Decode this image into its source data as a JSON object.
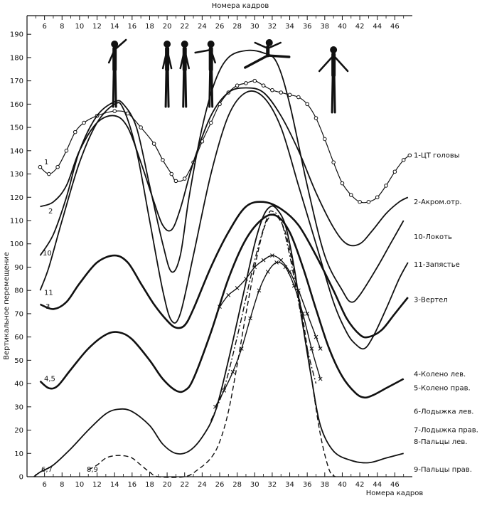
{
  "chart_data": {
    "type": "line",
    "title": "",
    "xlabel_top": "Номера кадров",
    "xlabel_bottom": "Номера кадров",
    "ylabel": "Вертикальное перемещение",
    "xlim": [
      4,
      48
    ],
    "ylim": [
      0,
      198
    ],
    "x_ticks_top": [
      "6",
      "8",
      "10",
      "12",
      "14",
      "16",
      "18",
      "20",
      "22",
      "24",
      "26",
      "28",
      "30",
      "32",
      "34",
      "36",
      "38",
      "40",
      "42",
      "44",
      "46"
    ],
    "x_ticks_bottom": [
      "6",
      "8",
      "10",
      "12",
      "14",
      "16",
      "18",
      "20",
      "22",
      "24",
      "26",
      "28",
      "30",
      "32",
      "34",
      "36",
      "38",
      "40",
      "42",
      "44",
      "46"
    ],
    "y_ticks": [
      "0",
      "10",
      "20",
      "30",
      "40",
      "50",
      "60",
      "70",
      "80",
      "90",
      "100",
      "110",
      "120",
      "130",
      "140",
      "150",
      "160",
      "170",
      "180",
      "190"
    ],
    "grid": false,
    "series": [
      {
        "name": "1-ЦТ головы",
        "style": "circles",
        "points": [
          [
            5.5,
            133
          ],
          [
            6.5,
            130
          ],
          [
            7.5,
            133
          ],
          [
            8.5,
            140
          ],
          [
            9.5,
            148
          ],
          [
            10.5,
            152
          ],
          [
            12,
            155
          ],
          [
            14,
            157
          ],
          [
            15.5,
            156
          ],
          [
            17,
            150
          ],
          [
            18.5,
            143
          ],
          [
            19.5,
            136
          ],
          [
            20.5,
            130
          ],
          [
            21,
            127
          ],
          [
            22,
            128
          ],
          [
            23,
            135
          ],
          [
            24,
            144
          ],
          [
            25,
            152
          ],
          [
            26,
            160
          ],
          [
            27,
            165
          ],
          [
            28,
            168
          ],
          [
            29,
            169
          ],
          [
            30,
            170
          ],
          [
            31,
            168
          ],
          [
            32,
            166
          ],
          [
            33,
            165
          ],
          [
            34,
            164
          ],
          [
            35,
            163
          ],
          [
            36,
            160
          ],
          [
            37,
            154
          ],
          [
            38,
            145
          ],
          [
            39,
            135
          ],
          [
            40,
            126
          ],
          [
            41,
            121
          ],
          [
            42,
            118
          ],
          [
            43,
            118
          ],
          [
            44,
            120
          ],
          [
            45,
            125
          ],
          [
            46,
            131
          ],
          [
            47,
            136
          ],
          [
            47.7,
            138
          ]
        ]
      },
      {
        "name": "2-Акром.отр.",
        "style": "solid",
        "points": [
          [
            5.5,
            116
          ],
          [
            7,
            118
          ],
          [
            8.5,
            125
          ],
          [
            10,
            140
          ],
          [
            12,
            152
          ],
          [
            14,
            155
          ],
          [
            15.5,
            150
          ],
          [
            17,
            135
          ],
          [
            18.5,
            118
          ],
          [
            19.5,
            108
          ],
          [
            20.5,
            106
          ],
          [
            21.5,
            115
          ],
          [
            23,
            135
          ],
          [
            25,
            155
          ],
          [
            27,
            165
          ],
          [
            29,
            167
          ],
          [
            31,
            165
          ],
          [
            33,
            155
          ],
          [
            35,
            140
          ],
          [
            37,
            122
          ],
          [
            39,
            107
          ],
          [
            40.5,
            100
          ],
          [
            42,
            100
          ],
          [
            43.5,
            106
          ],
          [
            45,
            113
          ],
          [
            46.5,
            118
          ],
          [
            47.5,
            120
          ]
        ]
      },
      {
        "name": "10-Локоть",
        "style": "solid",
        "points": [
          [
            5.5,
            95
          ],
          [
            7,
            104
          ],
          [
            8.5,
            120
          ],
          [
            10,
            140
          ],
          [
            12,
            155
          ],
          [
            14,
            161
          ],
          [
            15,
            160
          ],
          [
            16.5,
            150
          ],
          [
            18,
            125
          ],
          [
            19.5,
            100
          ],
          [
            20.5,
            88
          ],
          [
            21.5,
            95
          ],
          [
            22.5,
            120
          ],
          [
            24,
            150
          ],
          [
            25.5,
            170
          ],
          [
            27,
            180
          ],
          [
            29,
            183
          ],
          [
            31,
            182
          ],
          [
            32.5,
            178
          ],
          [
            34,
            160
          ],
          [
            36,
            125
          ],
          [
            38,
            95
          ],
          [
            40,
            80
          ],
          [
            41,
            75
          ],
          [
            42,
            78
          ],
          [
            44,
            90
          ],
          [
            45.5,
            100
          ],
          [
            47,
            110
          ]
        ]
      },
      {
        "name": "11-Запястье",
        "style": "solid",
        "points": [
          [
            5.5,
            80
          ],
          [
            6.5,
            90
          ],
          [
            8,
            110
          ],
          [
            10,
            135
          ],
          [
            12,
            152
          ],
          [
            14,
            160
          ],
          [
            15,
            158
          ],
          [
            16.5,
            140
          ],
          [
            18,
            110
          ],
          [
            19.5,
            80
          ],
          [
            20.5,
            67
          ],
          [
            21.5,
            70
          ],
          [
            23,
            95
          ],
          [
            25,
            130
          ],
          [
            27,
            155
          ],
          [
            29,
            165
          ],
          [
            31,
            163
          ],
          [
            33,
            150
          ],
          [
            35,
            125
          ],
          [
            37,
            100
          ],
          [
            39,
            75
          ],
          [
            40.5,
            62
          ],
          [
            41.5,
            57
          ],
          [
            42.5,
            55
          ],
          [
            43.5,
            60
          ],
          [
            45,
            72
          ],
          [
            46.5,
            85
          ],
          [
            47.5,
            92
          ]
        ]
      },
      {
        "name": "3-Вертел",
        "style": "solid-thick",
        "points": [
          [
            5.5,
            74
          ],
          [
            7,
            72
          ],
          [
            8.5,
            75
          ],
          [
            10,
            83
          ],
          [
            12,
            92
          ],
          [
            14,
            95
          ],
          [
            15.5,
            92
          ],
          [
            17,
            83
          ],
          [
            18.5,
            74
          ],
          [
            20,
            67
          ],
          [
            21,
            64
          ],
          [
            22,
            65
          ],
          [
            23,
            72
          ],
          [
            25,
            90
          ],
          [
            27,
            105
          ],
          [
            29,
            116
          ],
          [
            31,
            118
          ],
          [
            33,
            115
          ],
          [
            35,
            108
          ],
          [
            37,
            95
          ],
          [
            39,
            80
          ],
          [
            40.5,
            68
          ],
          [
            42,
            61
          ],
          [
            43,
            60
          ],
          [
            44.5,
            63
          ],
          [
            46,
            70
          ],
          [
            47.5,
            77
          ]
        ]
      },
      {
        "name": "4-Колено лев.",
        "style": "solid-thick",
        "points": [
          [
            5.5,
            41
          ],
          [
            6.5,
            38
          ],
          [
            7.5,
            39
          ],
          [
            9,
            46
          ],
          [
            11,
            55
          ],
          [
            13,
            61
          ],
          [
            14.5,
            62
          ],
          [
            16,
            59
          ],
          [
            18,
            50
          ],
          [
            19.5,
            42
          ],
          [
            21,
            37
          ],
          [
            22,
            37
          ],
          [
            23,
            42
          ],
          [
            25,
            62
          ],
          [
            27,
            85
          ],
          [
            29,
            102
          ],
          [
            31,
            111
          ],
          [
            32.5,
            112
          ],
          [
            34,
            105
          ],
          [
            35.5,
            90
          ],
          [
            37,
            72
          ],
          [
            38.5,
            55
          ],
          [
            40,
            43
          ],
          [
            41.5,
            36
          ],
          [
            42.5,
            34
          ],
          [
            43.5,
            35
          ],
          [
            45,
            38
          ],
          [
            47,
            42
          ]
        ]
      },
      {
        "name": "5-Колено прав.",
        "style": "cross",
        "points": [
          [
            26,
            73
          ],
          [
            27,
            78
          ],
          [
            28,
            81
          ],
          [
            29,
            85
          ],
          [
            30,
            90
          ],
          [
            31,
            93
          ],
          [
            32,
            95
          ],
          [
            33,
            93
          ],
          [
            34,
            88
          ],
          [
            35,
            80
          ],
          [
            36,
            70
          ],
          [
            37,
            60
          ],
          [
            37.5,
            55
          ]
        ]
      },
      {
        "name": "6-Лодыжка лев.",
        "style": "cross",
        "points": [
          [
            25.5,
            30
          ],
          [
            26.5,
            37
          ],
          [
            27.5,
            45
          ],
          [
            28.5,
            55
          ],
          [
            29.5,
            68
          ],
          [
            30.5,
            80
          ],
          [
            31.5,
            88
          ],
          [
            32.5,
            92
          ],
          [
            33.5,
            90
          ],
          [
            34.5,
            82
          ],
          [
            35.5,
            70
          ],
          [
            36.5,
            55
          ],
          [
            37.5,
            42
          ]
        ]
      },
      {
        "name": "7-Лодыжка прав.",
        "style": "dashdot",
        "points": [
          [
            25,
            24
          ],
          [
            26.5,
            38
          ],
          [
            28,
            60
          ],
          [
            29.5,
            85
          ],
          [
            30.5,
            100
          ],
          [
            31.5,
            112
          ],
          [
            32,
            114
          ],
          [
            33,
            110
          ],
          [
            34,
            95
          ],
          [
            35,
            75
          ],
          [
            36,
            55
          ],
          [
            37,
            40
          ]
        ]
      },
      {
        "name": "8-Пальцы лев.",
        "style": "solid",
        "points": [
          [
            4.8,
            0
          ],
          [
            5.5,
            2
          ],
          [
            7,
            5
          ],
          [
            9,
            12
          ],
          [
            11,
            20
          ],
          [
            13,
            27
          ],
          [
            14.5,
            29
          ],
          [
            16,
            28
          ],
          [
            18,
            22
          ],
          [
            19.5,
            14
          ],
          [
            21,
            10
          ],
          [
            22.5,
            11
          ],
          [
            24,
            17
          ],
          [
            25.5,
            28
          ],
          [
            27,
            50
          ],
          [
            28.5,
            75
          ],
          [
            30,
            100
          ],
          [
            31,
            112
          ],
          [
            31.8,
            116
          ],
          [
            32.5,
            115
          ],
          [
            33.5,
            108
          ],
          [
            34.5,
            90
          ],
          [
            35.5,
            65
          ],
          [
            36.5,
            42
          ],
          [
            37.5,
            22
          ],
          [
            39,
            11
          ],
          [
            41,
            7
          ],
          [
            43,
            6
          ],
          [
            45,
            8
          ],
          [
            47,
            10
          ]
        ]
      },
      {
        "name": "9-Пальцы прав.",
        "style": "dashed",
        "points": [
          [
            11,
            3
          ],
          [
            12,
            5
          ],
          [
            13,
            8
          ],
          [
            14,
            9
          ],
          [
            15,
            9
          ],
          [
            16,
            8
          ],
          [
            17,
            5
          ],
          [
            18,
            2
          ],
          [
            19,
            0
          ],
          [
            22,
            0
          ],
          [
            23.5,
            3
          ],
          [
            25,
            8
          ],
          [
            26,
            15
          ],
          [
            27,
            28
          ],
          [
            28,
            48
          ],
          [
            29,
            70
          ],
          [
            30,
            90
          ],
          [
            31,
            106
          ],
          [
            31.8,
            112
          ],
          [
            32.5,
            112
          ],
          [
            33.5,
            105
          ],
          [
            34.5,
            88
          ],
          [
            35.5,
            68
          ],
          [
            36.5,
            42
          ],
          [
            37.5,
            18
          ],
          [
            38.5,
            3
          ],
          [
            39.2,
            0
          ]
        ]
      }
    ],
    "curve_labels_right": [
      {
        "text": "1-ЦТ головы",
        "y": 138
      },
      {
        "text": "2-Акром.отр.",
        "y": 118
      },
      {
        "text": "10-Локоть",
        "y": 103
      },
      {
        "text": "11-Запястье",
        "y": 91
      },
      {
        "text": "3-Вертел",
        "y": 76
      },
      {
        "text": "4-Колено лев.",
        "y": 44
      },
      {
        "text": "5-Колено прав.",
        "y": 38
      },
      {
        "text": "6-Лодыжка лев.",
        "y": 28
      },
      {
        "text": "7-Лодыжка прав.",
        "y": 20
      },
      {
        "text": "8-Пальцы лев.",
        "y": 15
      },
      {
        "text": "9-Пальцы прав.",
        "y": 3
      }
    ],
    "curve_labels_left": [
      {
        "text": "1",
        "y": 135
      },
      {
        "text": "2",
        "y": 114
      },
      {
        "text": "10",
        "y": 96
      },
      {
        "text": "11",
        "y": 79
      },
      {
        "text": "3",
        "y": 73
      },
      {
        "text": "4,5",
        "y": 42
      },
      {
        "text": "6,7",
        "y": 3
      },
      {
        "text": "8,9",
        "y": 3
      }
    ],
    "figures": [
      {
        "name": "arm-raise-figure",
        "frame": 14
      },
      {
        "name": "pair-figure-a",
        "frame": 20
      },
      {
        "name": "pair-figure-b",
        "frame": 22
      },
      {
        "name": "arms-out-figure",
        "frame": 25
      },
      {
        "name": "split-leap-figure",
        "frame": 31.5
      },
      {
        "name": "landing-figure",
        "frame": 39
      }
    ]
  }
}
